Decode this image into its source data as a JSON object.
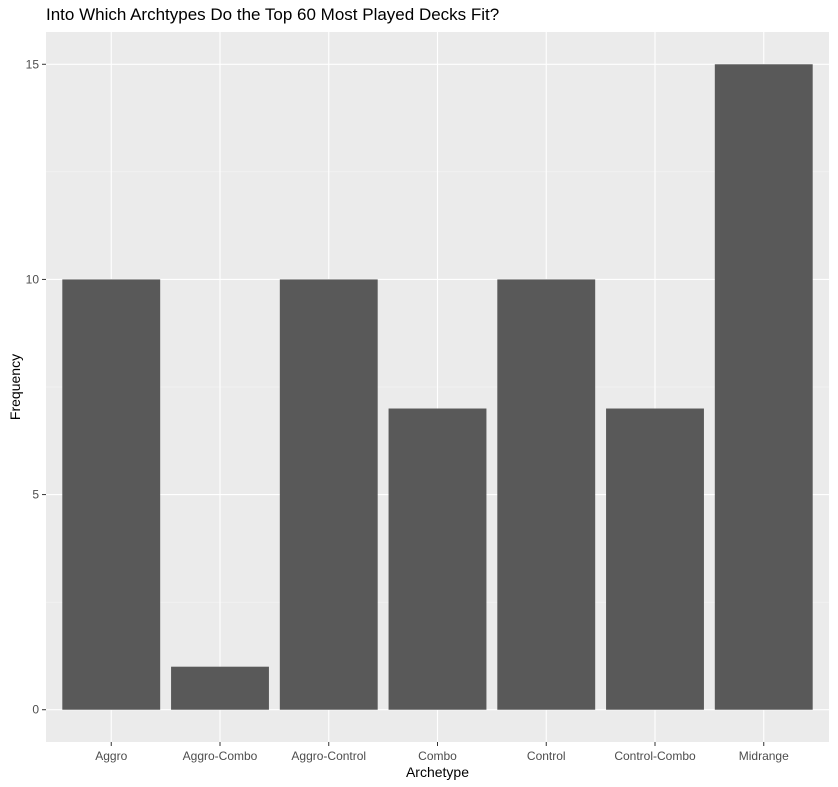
{
  "chart_data": {
    "type": "bar",
    "title": "Into Which Archtypes Do the Top 60 Most Played Decks Fit?",
    "xlabel": "Archetype",
    "ylabel": "Frequency",
    "categories": [
      "Aggro",
      "Aggro-Combo",
      "Aggro-Control",
      "Combo",
      "Control",
      "Control-Combo",
      "Midrange"
    ],
    "values": [
      10,
      1,
      10,
      7,
      10,
      7,
      15
    ],
    "ylim": [
      -0.75,
      15.75
    ],
    "yticks": [
      0,
      5,
      10,
      15
    ],
    "ytick_labels": [
      "0",
      "5",
      "10",
      "15"
    ],
    "grid": true,
    "legend": "none",
    "colors": {
      "bar": "#595959",
      "panel_background": "#ebebeb",
      "grid_major": "#ffffff",
      "grid_minor": "#f5f5f5",
      "tick": "#333333"
    }
  }
}
